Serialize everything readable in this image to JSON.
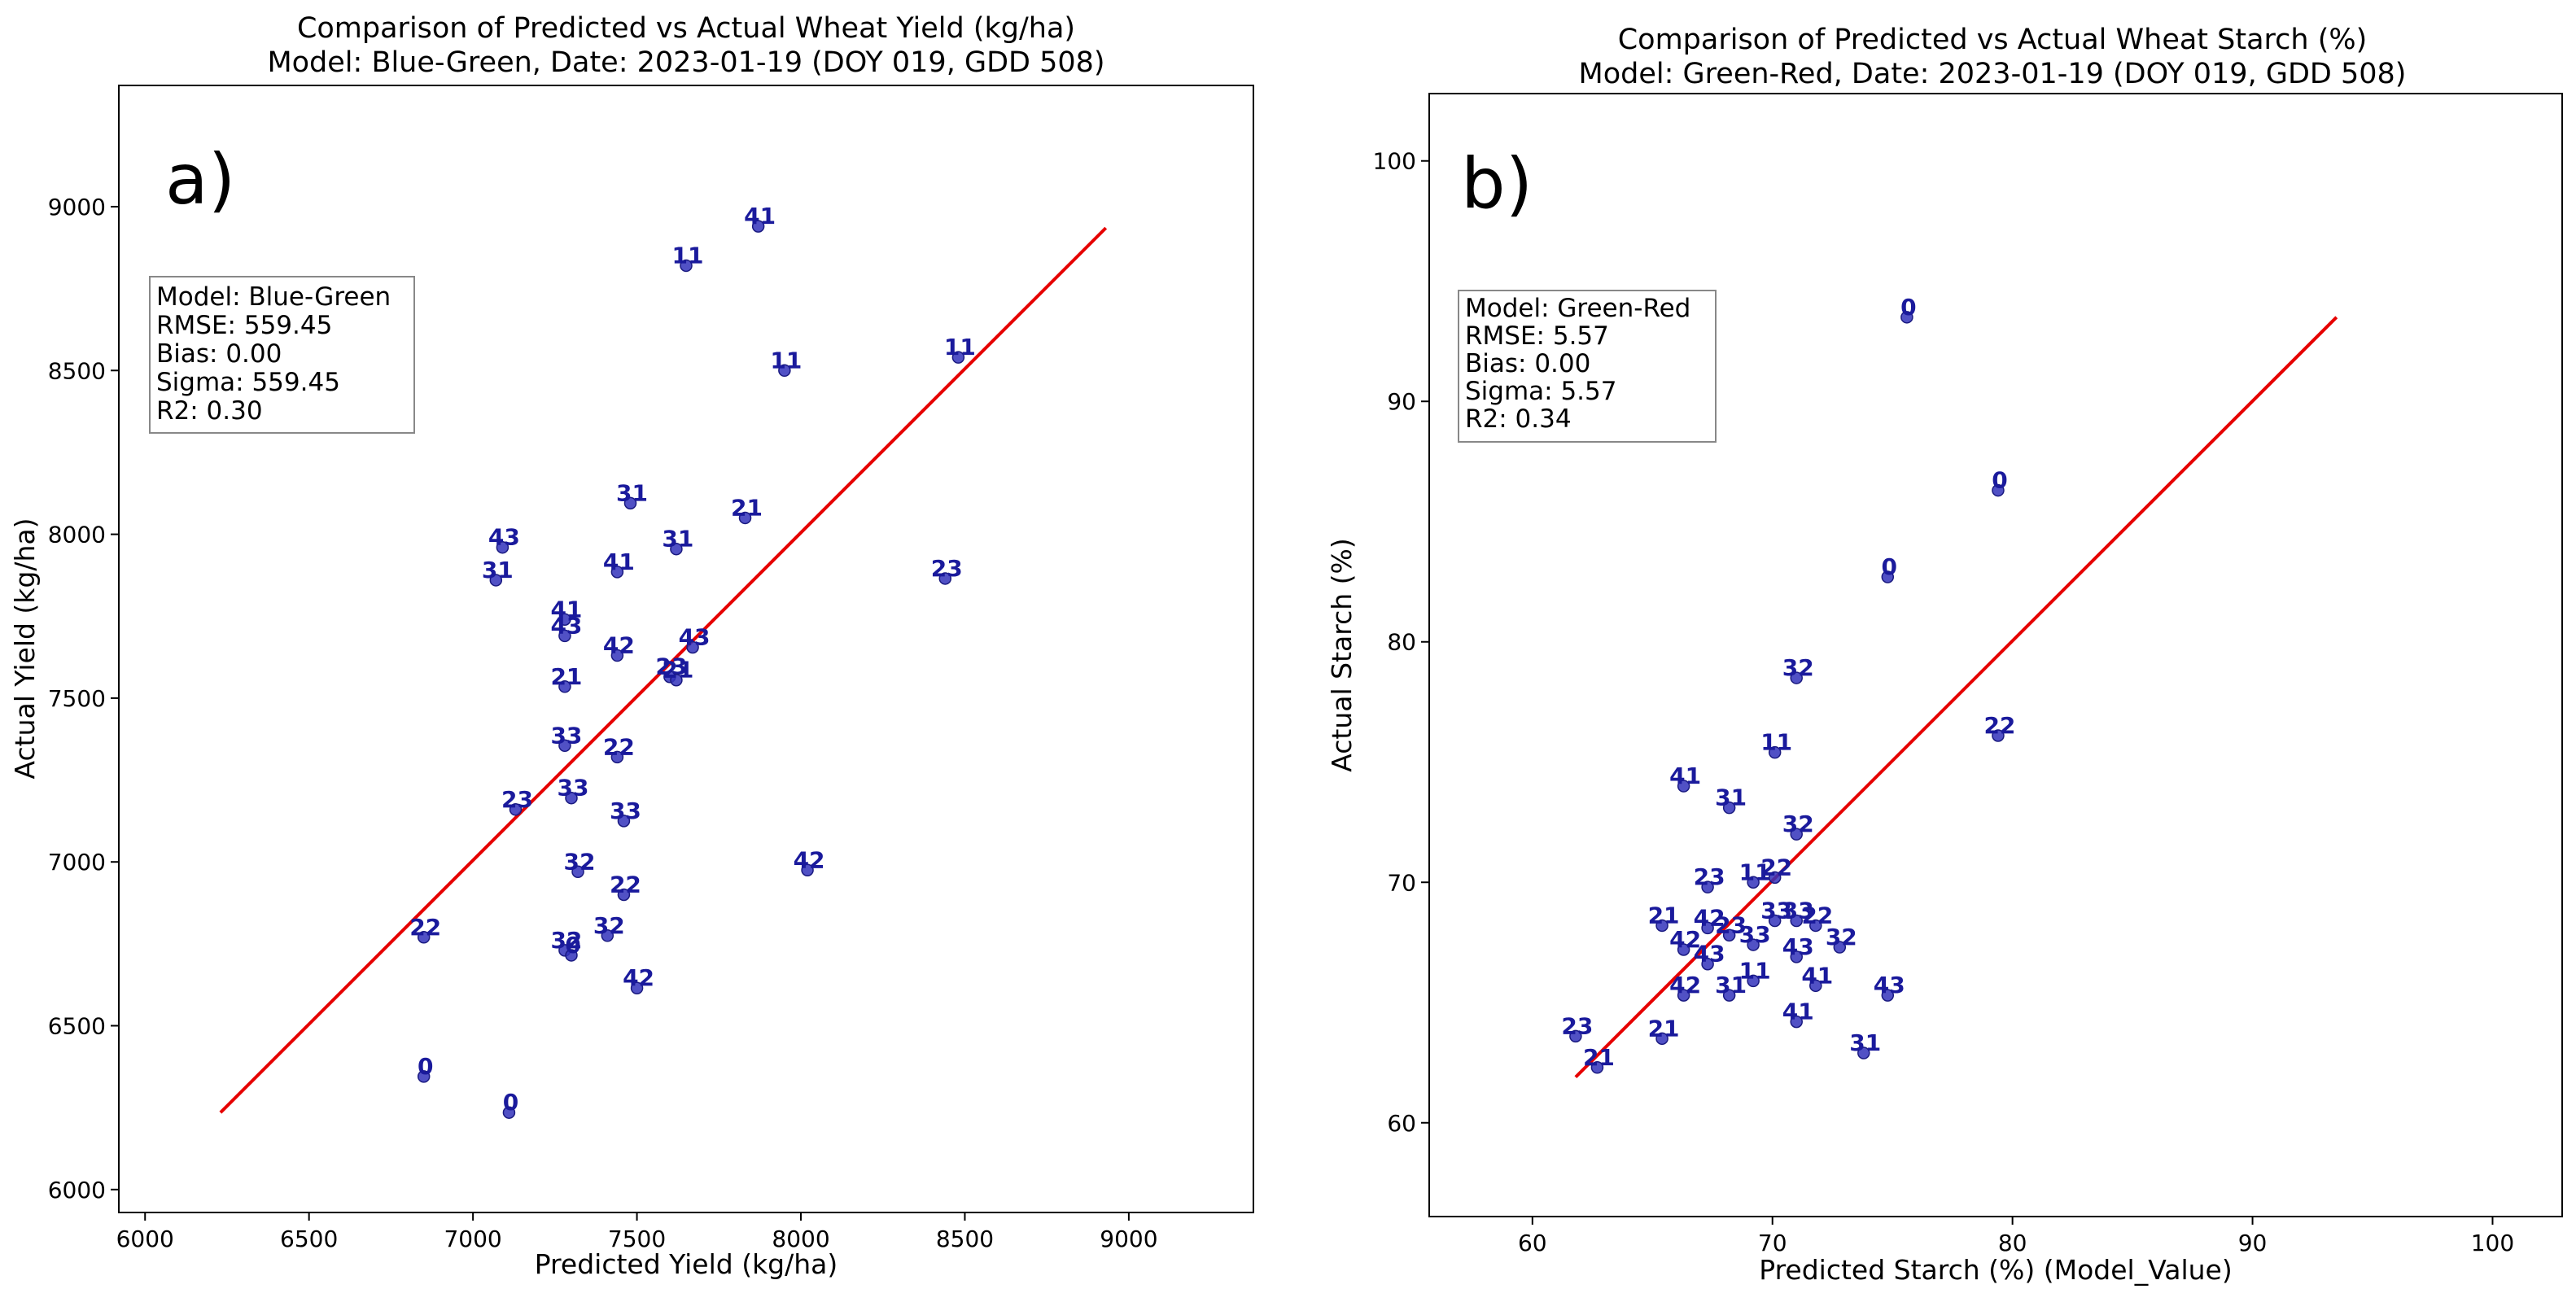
{
  "chart_data": [
    {
      "type": "scatter",
      "panel": "a)",
      "title": "Comparison of Predicted vs Actual Wheat Yield (kg/ha)",
      "subtitle": "Model: Blue-Green, Date: 2023-01-19 (DOY 019, GDD 508)",
      "xlabel": "Predicted Yield (kg/ha)",
      "ylabel": "Actual Yield (kg/ha)",
      "xlim": [
        5920,
        9380
      ],
      "ylim": [
        5930,
        9370
      ],
      "xticks": [
        6000,
        6500,
        7000,
        7500,
        8000,
        8500,
        9000
      ],
      "yticks": [
        6000,
        6500,
        7000,
        7500,
        8000,
        8500,
        9000
      ],
      "grid": false,
      "stats": [
        "Model: Blue-Green",
        "RMSE: 559.45",
        "Bias: 0.00",
        "Sigma: 559.45",
        "R2: 0.30"
      ],
      "reference_line": {
        "x": [
          6230,
          8930
        ],
        "y": [
          6235,
          8935
        ],
        "color": "#e60000"
      },
      "point_color": "#3333bb",
      "points": [
        {
          "x": 7870,
          "y": 8940,
          "label": "41"
        },
        {
          "x": 7650,
          "y": 8820,
          "label": "11"
        },
        {
          "x": 7950,
          "y": 8500,
          "label": "11"
        },
        {
          "x": 8480,
          "y": 8540,
          "label": "11"
        },
        {
          "x": 7480,
          "y": 8095,
          "label": "31"
        },
        {
          "x": 7830,
          "y": 8050,
          "label": "21"
        },
        {
          "x": 7090,
          "y": 7960,
          "label": "43"
        },
        {
          "x": 7620,
          "y": 7955,
          "label": "31"
        },
        {
          "x": 7440,
          "y": 7885,
          "label": "41"
        },
        {
          "x": 7070,
          "y": 7860,
          "label": "31"
        },
        {
          "x": 8440,
          "y": 7865,
          "label": "23"
        },
        {
          "x": 7280,
          "y": 7740,
          "label": "41"
        },
        {
          "x": 7280,
          "y": 7690,
          "label": "43"
        },
        {
          "x": 7670,
          "y": 7655,
          "label": "43"
        },
        {
          "x": 7440,
          "y": 7630,
          "label": "42"
        },
        {
          "x": 7600,
          "y": 7565,
          "label": "23"
        },
        {
          "x": 7620,
          "y": 7555,
          "label": "21"
        },
        {
          "x": 7280,
          "y": 7535,
          "label": "21"
        },
        {
          "x": 7280,
          "y": 7355,
          "label": "33"
        },
        {
          "x": 7440,
          "y": 7320,
          "label": "22"
        },
        {
          "x": 7300,
          "y": 7195,
          "label": "33"
        },
        {
          "x": 7130,
          "y": 7160,
          "label": "23"
        },
        {
          "x": 7460,
          "y": 7125,
          "label": "33"
        },
        {
          "x": 7320,
          "y": 6970,
          "label": "32"
        },
        {
          "x": 8020,
          "y": 6975,
          "label": "42"
        },
        {
          "x": 7460,
          "y": 6900,
          "label": "22"
        },
        {
          "x": 6850,
          "y": 6770,
          "label": "22"
        },
        {
          "x": 7280,
          "y": 6730,
          "label": "32"
        },
        {
          "x": 7410,
          "y": 6775,
          "label": "32"
        },
        {
          "x": 7300,
          "y": 6715,
          "label": "0"
        },
        {
          "x": 7500,
          "y": 6615,
          "label": "42"
        },
        {
          "x": 6850,
          "y": 6345,
          "label": "0"
        },
        {
          "x": 7110,
          "y": 6235,
          "label": "0"
        }
      ]
    },
    {
      "type": "scatter",
      "panel": "b)",
      "title": "Comparison of Predicted vs Actual Wheat Starch (%)",
      "subtitle": "Model: Green-Red, Date: 2023-01-19 (DOY 019, GDD 508)",
      "xlabel": "Predicted Starch (%) (Model_Value)",
      "ylabel": "Actual Starch (%)",
      "xlim": [
        55.7,
        102.9
      ],
      "ylim": [
        56.1,
        102.8
      ],
      "xticks": [
        60,
        70,
        80,
        90,
        100
      ],
      "yticks": [
        60,
        70,
        80,
        90,
        100
      ],
      "grid": false,
      "stats": [
        "Model: Green-Red",
        "RMSE: 5.57",
        "Bias: 0.00",
        "Sigma: 5.57",
        "R2: 0.34"
      ],
      "reference_line": {
        "x": [
          61.8,
          93.5
        ],
        "y": [
          61.9,
          93.5
        ],
        "color": "#e60000"
      },
      "point_color": "#3333bb",
      "points": [
        {
          "x": 75.6,
          "y": 93.5,
          "label": "0"
        },
        {
          "x": 79.4,
          "y": 86.3,
          "label": "0"
        },
        {
          "x": 74.8,
          "y": 82.7,
          "label": "0"
        },
        {
          "x": 71.0,
          "y": 78.5,
          "label": "32"
        },
        {
          "x": 79.4,
          "y": 76.1,
          "label": "22"
        },
        {
          "x": 70.1,
          "y": 75.4,
          "label": "11"
        },
        {
          "x": 66.3,
          "y": 74.0,
          "label": "41"
        },
        {
          "x": 68.2,
          "y": 73.1,
          "label": "31"
        },
        {
          "x": 71.0,
          "y": 72.0,
          "label": "32"
        },
        {
          "x": 67.3,
          "y": 69.8,
          "label": "23"
        },
        {
          "x": 69.2,
          "y": 70.0,
          "label": "11"
        },
        {
          "x": 70.1,
          "y": 70.2,
          "label": "22"
        },
        {
          "x": 65.4,
          "y": 68.2,
          "label": "21"
        },
        {
          "x": 67.3,
          "y": 68.1,
          "label": "42"
        },
        {
          "x": 68.2,
          "y": 67.8,
          "label": "23"
        },
        {
          "x": 70.1,
          "y": 68.4,
          "label": "33"
        },
        {
          "x": 71.0,
          "y": 68.4,
          "label": "33"
        },
        {
          "x": 71.8,
          "y": 68.2,
          "label": "22"
        },
        {
          "x": 69.2,
          "y": 67.4,
          "label": "33"
        },
        {
          "x": 72.8,
          "y": 67.3,
          "label": "32"
        },
        {
          "x": 66.3,
          "y": 67.2,
          "label": "42"
        },
        {
          "x": 67.3,
          "y": 66.6,
          "label": "43"
        },
        {
          "x": 71.0,
          "y": 66.9,
          "label": "43"
        },
        {
          "x": 69.2,
          "y": 65.9,
          "label": "11"
        },
        {
          "x": 71.8,
          "y": 65.7,
          "label": "41"
        },
        {
          "x": 66.3,
          "y": 65.3,
          "label": "42"
        },
        {
          "x": 68.2,
          "y": 65.3,
          "label": "31"
        },
        {
          "x": 74.8,
          "y": 65.3,
          "label": "43"
        },
        {
          "x": 71.0,
          "y": 64.2,
          "label": "41"
        },
        {
          "x": 61.8,
          "y": 63.6,
          "label": "23"
        },
        {
          "x": 65.4,
          "y": 63.5,
          "label": "21"
        },
        {
          "x": 73.8,
          "y": 62.9,
          "label": "31"
        },
        {
          "x": 62.7,
          "y": 62.3,
          "label": "21"
        }
      ]
    }
  ]
}
